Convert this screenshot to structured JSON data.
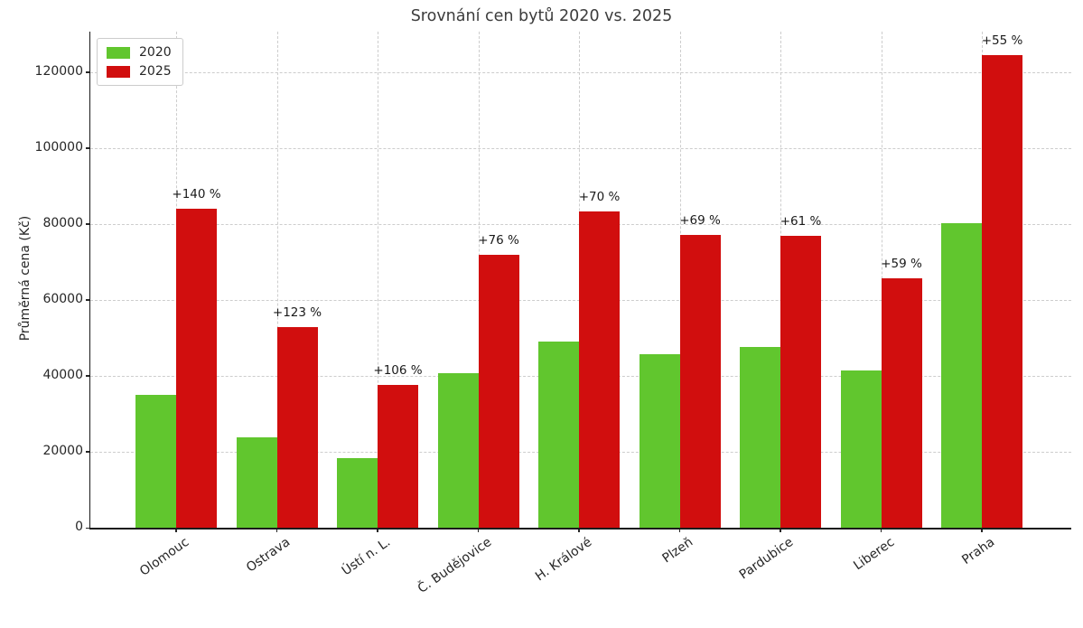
{
  "chart_data": {
    "type": "bar",
    "title": "Srovnání cen bytů 2020 vs. 2025",
    "ylabel": "Průměrná cena (Kč)",
    "xlabel": "",
    "categories": [
      "Olomouc",
      "Ostrava",
      "Ústí n. L.",
      "Č. Budějovice",
      "H. Králové",
      "Plzeň",
      "Pardubice",
      "Liberec",
      "Praha"
    ],
    "series": [
      {
        "name": "2020",
        "color": "#61c62e",
        "values": [
          35000,
          23700,
          18300,
          40800,
          49000,
          45600,
          47700,
          41400,
          80300
        ]
      },
      {
        "name": "2025",
        "color": "#d10e0e",
        "values": [
          84000,
          52900,
          37700,
          71800,
          83300,
          77100,
          76800,
          65800,
          124500
        ]
      }
    ],
    "annotations_above_2025_bars": [
      "+140 %",
      "+123 %",
      "+106 %",
      "+76 %",
      "+70 %",
      "+69 %",
      "+61 %",
      "+59 %",
      "+55 %"
    ],
    "y_ticks": [
      0,
      20000,
      40000,
      60000,
      80000,
      100000,
      120000
    ],
    "ylim": [
      0,
      130700
    ],
    "grid": "dashed horizontal at y-ticks and vertical at category centers",
    "legend_position": "upper left",
    "colors": {
      "series_2020": "#61c62e",
      "series_2025": "#d10e0e",
      "grid": "#cdcdcd",
      "axis": "#1a1a1a",
      "title_text": "#3c3c3c"
    }
  }
}
